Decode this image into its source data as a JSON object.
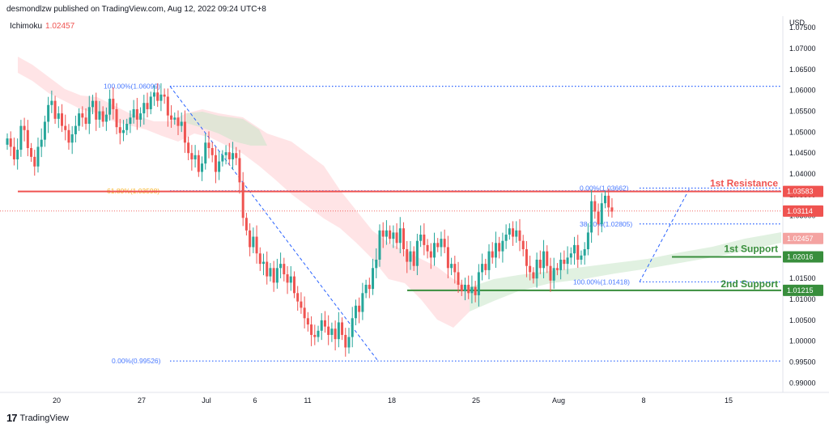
{
  "header": {
    "text": "desmondlzw published on TradingView.com, Aug 12, 2022 09:24 UTC+8"
  },
  "indicator": {
    "name": "Ichimoku",
    "value": "1.02457"
  },
  "footer": {
    "brand": "TradingView",
    "logo": "17"
  },
  "colors": {
    "up": "#26a69a",
    "down": "#ef5350",
    "resistance": "#ef5350",
    "support": "#388e3c",
    "fib": "#2962ff",
    "current": "#ef5350",
    "cloud_bull": "#c8e6c9",
    "cloud_bear": "#ffcdd2"
  },
  "chart_data": {
    "type": "candlestick",
    "currency_label": "USD",
    "ylim": [
      0.98775,
      1.07775
    ],
    "y_ticks": [
      "1.07500",
      "1.07000",
      "1.06500",
      "1.06000",
      "1.05500",
      "1.05000",
      "1.04500",
      "1.04000",
      "1.03500",
      "1.03000",
      "1.02500",
      "1.02000",
      "1.01500",
      "1.01000",
      "1.00500",
      "1.00000",
      "0.99500",
      "0.99000"
    ],
    "x_ticks": [
      "20",
      "27",
      "Jul",
      "6",
      "11",
      "18",
      "25",
      "Aug",
      "8",
      "15"
    ],
    "price_levels": [
      {
        "name": "1st Resistance",
        "value": 1.03583,
        "label": "1.03583",
        "kind": "resistance"
      },
      {
        "name": "current",
        "value": 1.03114,
        "label": "1.03114",
        "kind": "current"
      },
      {
        "name": "ichimoku",
        "value": 1.02457,
        "label": "1.02457",
        "kind": "indicator"
      },
      {
        "name": "1st Support",
        "value": 1.02016,
        "label": "1.02016",
        "kind": "support"
      },
      {
        "name": "2nd Support",
        "value": 1.01215,
        "label": "1.01215",
        "kind": "support"
      }
    ],
    "annotations": [
      {
        "text": "1st Resistance",
        "value": 1.03583,
        "kind": "resistance"
      },
      {
        "text": "1st Support",
        "value": 1.02016,
        "kind": "support"
      },
      {
        "text": "2nd Support",
        "value": 1.01215,
        "kind": "support"
      }
    ],
    "fib_levels": [
      {
        "label": "100.00%(1.06099)",
        "value": 1.06099
      },
      {
        "label": "61.80%(1.03598)",
        "value": 1.03598
      },
      {
        "label": "0.00%(0.99526)",
        "value": 0.99526
      },
      {
        "label": "0.00%(1.03662)",
        "value": 1.03662
      },
      {
        "label": "38.20%(1.02805)",
        "value": 1.02805
      },
      {
        "label": "100.00%(1.01418)",
        "value": 1.01418
      }
    ],
    "candles_close": [
      1.0485,
      1.0465,
      1.0435,
      1.0458,
      1.0515,
      1.0505,
      1.0462,
      1.0441,
      1.0418,
      1.0465,
      1.0482,
      1.0525,
      1.0565,
      1.0575,
      1.0532,
      1.0545,
      1.0515,
      1.0505,
      1.0475,
      1.0495,
      1.0515,
      1.0545,
      1.0535,
      1.052,
      1.056,
      1.0575,
      1.053,
      1.055,
      1.0525,
      1.0542,
      1.058,
      1.0555,
      1.0512,
      1.0498,
      1.0505,
      1.052,
      1.0535,
      1.0555,
      1.053,
      1.0545,
      1.057,
      1.0555,
      1.0585,
      1.0595,
      1.0575,
      1.059,
      1.0585,
      1.054,
      1.053,
      1.0535,
      1.0515,
      1.0525,
      1.0475,
      1.045,
      1.0435,
      1.0445,
      1.0405,
      1.0425,
      1.0475,
      1.0462,
      1.0445,
      1.0405,
      1.043,
      1.0445,
      1.0452,
      1.0435,
      1.045,
      1.0438,
      1.038,
      1.0295,
      1.0265,
      1.0225,
      1.025,
      1.021,
      1.0185,
      1.019,
      1.0155,
      1.0175,
      1.014,
      1.0175,
      1.0185,
      1.016,
      1.014,
      1.0155,
      1.0115,
      1.0095,
      1.008,
      1.0055,
      1.004,
      1.0015,
      1.001,
      1.0025,
      1.005,
      1.0035,
      1.0015,
      1.003,
      1.0005,
      1.0045,
      1.0015,
      0.9985,
      1.001,
      1.0055,
      1.0085,
      1.007,
      1.0115,
      1.0135,
      1.0125,
      1.0175,
      1.0195,
      1.0265,
      1.025,
      1.0265,
      1.0245,
      1.026,
      1.0235,
      1.027,
      1.022,
      1.019,
      1.0215,
      1.018,
      1.024,
      1.0255,
      1.023,
      1.0215,
      1.02,
      1.0235,
      1.0225,
      1.0245,
      1.0225,
      1.0175,
      1.0185,
      1.0165,
      1.0135,
      1.012,
      1.0135,
      1.0115,
      1.013,
      1.011,
      1.0165,
      1.0185,
      1.017,
      1.0215,
      1.02,
      1.0235,
      1.0215,
      1.024,
      1.0255,
      1.027,
      1.025,
      1.0265,
      1.024,
      1.022,
      1.018,
      1.0165,
      1.015,
      1.0195,
      1.0175,
      1.0215,
      1.018,
      1.0145,
      1.0175,
      1.017,
      1.0195,
      1.0185,
      1.02,
      1.021,
      1.023,
      1.0195,
      1.0205,
      1.022,
      1.026,
      1.0335,
      1.031,
      1.028,
      1.033,
      1.0348,
      1.032,
      1.031
    ]
  }
}
